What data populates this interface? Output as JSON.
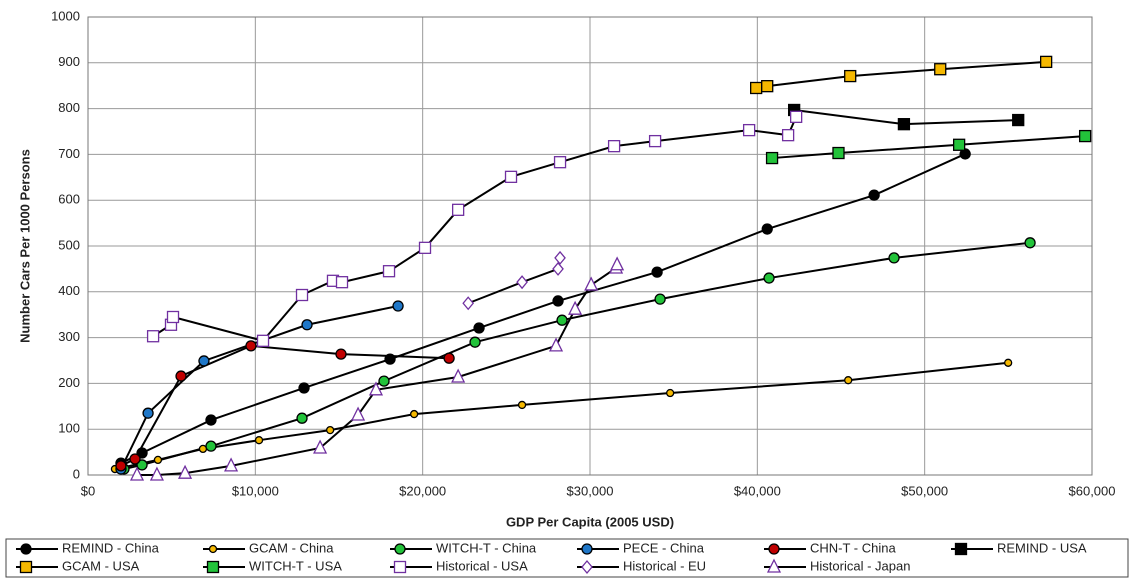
{
  "chart_data": {
    "type": "scatter-line",
    "x_label": "GDP Per Capita (2005 USD)",
    "y_label": "Number Cars Per 1000 Persons",
    "xlim": [
      0,
      60000
    ],
    "ylim": [
      0,
      1000
    ],
    "xticks": [
      {
        "value": 0,
        "label": "$0"
      },
      {
        "value": 10000,
        "label": "$10,000"
      },
      {
        "value": 20000,
        "label": "$20,000"
      },
      {
        "value": 30000,
        "label": "$30,000"
      },
      {
        "value": 40000,
        "label": "$40,000"
      },
      {
        "value": 50000,
        "label": "$50,000"
      },
      {
        "value": 60000,
        "label": "$60,000"
      }
    ],
    "yticks": [
      0,
      100,
      200,
      300,
      400,
      500,
      600,
      700,
      800,
      900,
      1000
    ],
    "grid": true,
    "series": [
      {
        "name": "REMIND - China",
        "color": "#000000",
        "fill": "#000000",
        "marker": "circle",
        "x": [
          1970,
          3230,
          7350,
          12910,
          18050,
          23370,
          28090,
          34010,
          40590,
          46980,
          52420
        ],
        "values": [
          26,
          48,
          120,
          190,
          253,
          321,
          380,
          443,
          537,
          611,
          701
        ]
      },
      {
        "name": "GCAM - China",
        "color": "#000000",
        "fill": "#f5b800",
        "marker": "small-circle",
        "x": [
          1610,
          4180,
          6870,
          10220,
          14470,
          19490,
          25940,
          34790,
          45430,
          54990
        ],
        "values": [
          13,
          33,
          57,
          76,
          98,
          133,
          153,
          179,
          207,
          245
        ]
      },
      {
        "name": "WITCH-T - China",
        "color": "#000000",
        "fill": "#22c33a",
        "marker": "circle",
        "x": [
          2150,
          3230,
          7350,
          12790,
          17690,
          23130,
          28330,
          34190,
          40700,
          48170,
          56300
        ],
        "values": [
          13,
          22,
          63,
          124,
          205,
          290,
          338,
          384,
          430,
          474,
          507
        ]
      },
      {
        "name": "PECE - China",
        "color": "#000000",
        "fill": "#1f77c8",
        "marker": "circle",
        "x": [
          1970,
          3590,
          6930,
          13090,
          18530
        ],
        "values": [
          13,
          135,
          249,
          328,
          369
        ]
      },
      {
        "name": "CHN-T - China",
        "color": "#000000",
        "fill": "#c00000",
        "marker": "circle",
        "x": [
          1970,
          2810,
          5560,
          9740,
          15120,
          21580
        ],
        "values": [
          20,
          35,
          216,
          282,
          264,
          255
        ]
      },
      {
        "name": "REMIND - USA",
        "color": "#000000",
        "fill": "#000000",
        "marker": "square",
        "x": [
          42200,
          48760,
          55590
        ],
        "values": [
          797,
          766,
          775
        ]
      },
      {
        "name": "GCAM - USA",
        "color": "#000000",
        "fill": "#f5b800",
        "marker": "square",
        "x": [
          39930,
          40590,
          45550,
          50930,
          57260
        ],
        "values": [
          845,
          849,
          871,
          886,
          902
        ]
      },
      {
        "name": "WITCH-T - USA",
        "color": "#000000",
        "fill": "#22c33a",
        "marker": "square",
        "x": [
          40880,
          44850,
          52060,
          59590
        ],
        "values": [
          692,
          703,
          721,
          740
        ]
      },
      {
        "name": "Historical - USA",
        "color": "#000000",
        "fill": "#ffffff",
        "stroke": "#7030a0",
        "marker": "square",
        "x": [
          3890,
          4960,
          5080,
          10460,
          12790,
          14640,
          15180,
          17990,
          20140,
          22120,
          25280,
          28210,
          31440,
          33890,
          39510,
          41840,
          42320
        ],
        "values": [
          303,
          328,
          345,
          293,
          393,
          424,
          421,
          445,
          496,
          579,
          651,
          683,
          718,
          729,
          753,
          742,
          782
        ]
      },
      {
        "name": "Historical - EU",
        "color": "#000000",
        "fill": "#ffffff",
        "stroke": "#7030a0",
        "marker": "diamond",
        "x": [
          22720,
          25940,
          28090,
          28210
        ],
        "values": [
          375,
          421,
          450,
          474
        ]
      },
      {
        "name": "Historical - Japan",
        "color": "#000000",
        "fill": "#ffffff",
        "stroke": "#7030a0",
        "marker": "triangle",
        "x": [
          2930,
          4120,
          5800,
          8550,
          13870,
          16140,
          17210,
          22120,
          27970,
          29110,
          30070,
          31560,
          31620
        ],
        "values": [
          0,
          0,
          4,
          20,
          59,
          131,
          186,
          214,
          282,
          362,
          415,
          452,
          459
        ]
      }
    ]
  }
}
